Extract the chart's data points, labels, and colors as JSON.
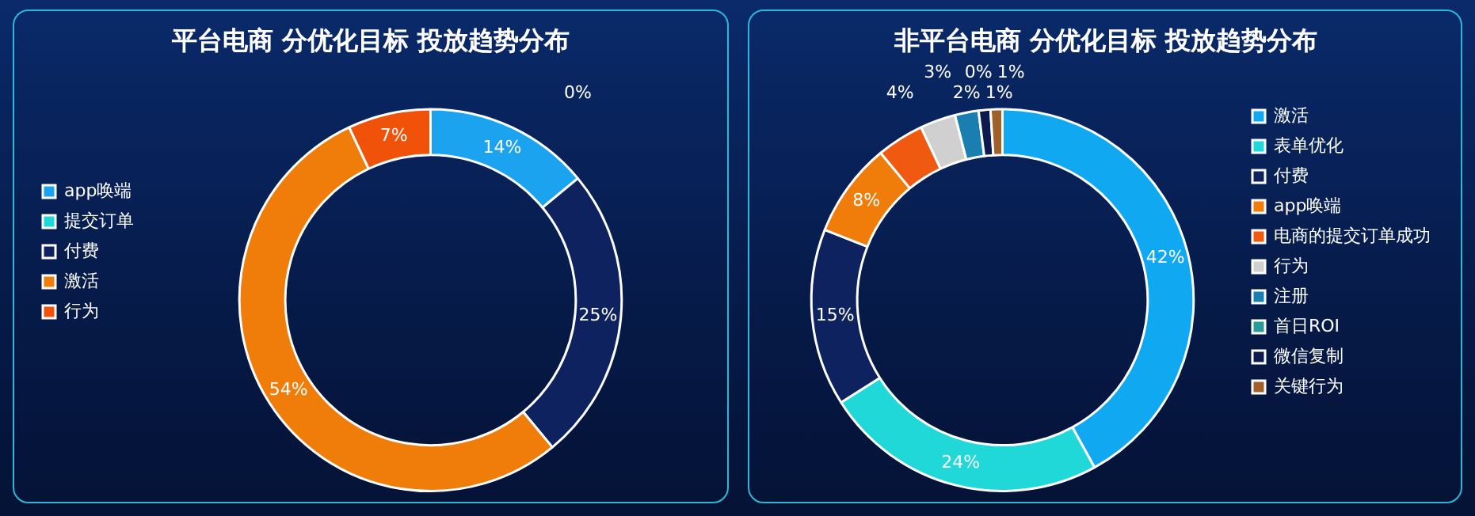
{
  "chart_data": [
    {
      "type": "donut",
      "title": "平台电商 分优化目标 投放趋势分布",
      "categories": [
        "app唤端",
        "提交订单",
        "付费",
        "激活",
        "行为"
      ],
      "values": [
        14,
        0,
        25,
        54,
        7
      ],
      "colors": [
        "#1ba3f0",
        "#1fd8d8",
        "#0f2260",
        "#f07d0a",
        "#f0520a"
      ],
      "value_labels": [
        "14%",
        "0%",
        "25%",
        "54%",
        "7%"
      ],
      "legend": "left"
    },
    {
      "type": "donut",
      "title": "非平台电商 分优化目标 投放趋势分布",
      "categories": [
        "激活",
        "表单优化",
        "付费",
        "app唤端",
        "电商的提交订单成功",
        "行为",
        "注册",
        "首日ROI",
        "微信复制",
        "关键行为"
      ],
      "values": [
        42,
        24,
        15,
        8,
        4,
        3,
        2,
        0,
        1,
        1
      ],
      "colors": [
        "#10a8f0",
        "#20d8d8",
        "#0f2260",
        "#f07d0a",
        "#f05a10",
        "#d0d0d0",
        "#1a7fb0",
        "#2a9a9a",
        "#0d1a50",
        "#a0602a"
      ],
      "value_labels": [
        "42%",
        "24%",
        "15%",
        "8%",
        "4%",
        "3%",
        "2%",
        "0%",
        "1%",
        "1%"
      ],
      "legend": "right"
    }
  ]
}
